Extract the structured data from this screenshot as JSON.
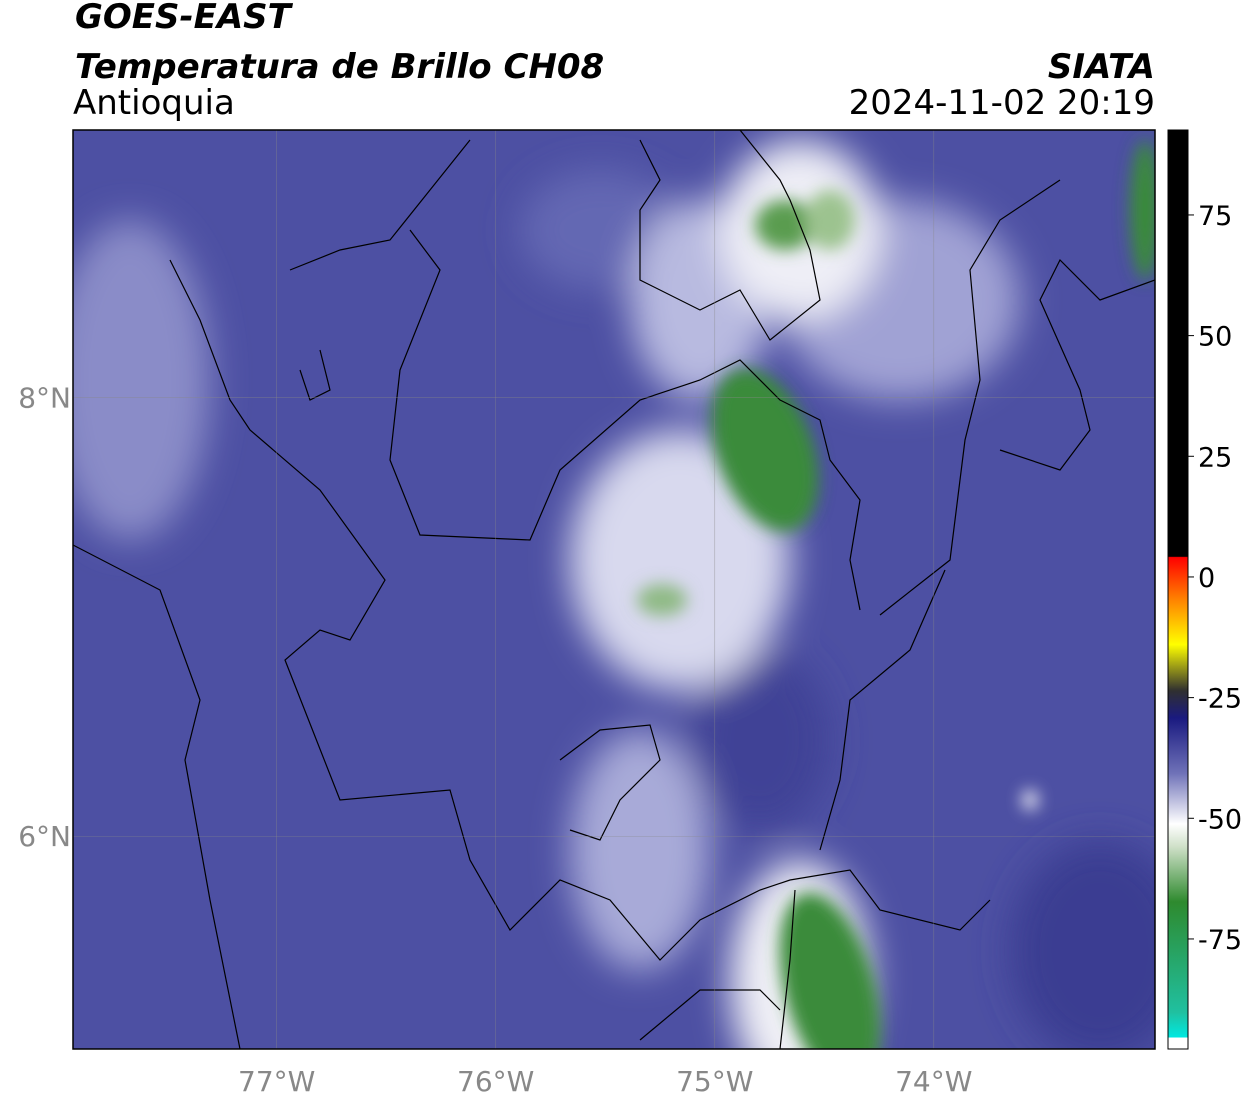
{
  "header": {
    "title": "GOES-EAST",
    "subtitle": "Temperatura de Brillo CH08",
    "region": "Antioquia",
    "source": "SIATA",
    "datetime": "2024-11-02 20:19"
  },
  "map": {
    "xlim": [
      -77.93,
      -72.99
    ],
    "ylim": [
      5.03,
      9.22
    ],
    "xticks": [
      {
        "value": -77,
        "label": "77°W"
      },
      {
        "value": -76,
        "label": "76°W"
      },
      {
        "value": -75,
        "label": "75°W"
      },
      {
        "value": -74,
        "label": "74°W"
      }
    ],
    "yticks": [
      {
        "value": 8,
        "label": "8°N"
      },
      {
        "value": 6,
        "label": "6°N"
      }
    ],
    "grid": true
  },
  "colorbar": {
    "lim": [
      -97.8,
      92.6
    ],
    "ticks": [
      75,
      50,
      25,
      0,
      -25,
      -50,
      -75
    ]
  }
}
